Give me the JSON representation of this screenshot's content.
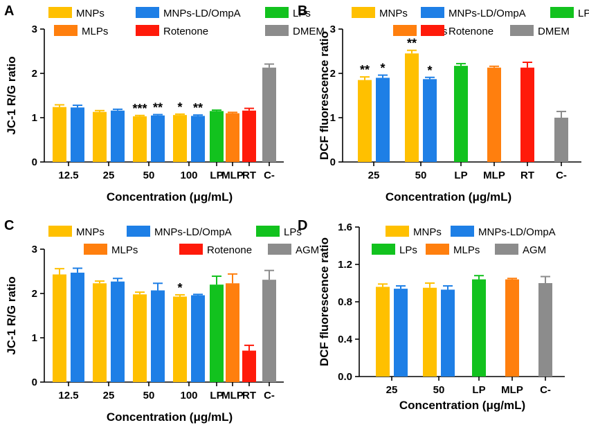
{
  "colors": {
    "MNPs": "#FFC000",
    "MNPs-LD/OmpA": "#1E7FE6",
    "LPs": "#12C21E",
    "MLPs": "#FF7F0E",
    "Rotenone": "#FF1A0A",
    "DMEM": "#8C8C8C",
    "AGM": "#8C8C8C"
  },
  "chart_data": [
    {
      "panel": "A",
      "type": "bar",
      "ylabel": "JC-1 R/G ratio",
      "xlabel": "Concentration (μg/mL)",
      "ylim": [
        0,
        3
      ],
      "yticks": [
        "0",
        "1",
        "2",
        "3"
      ],
      "legend": [
        "MNPs",
        "MNPs-LD/OmpA",
        "LPs",
        "MLPs",
        "Rotenone",
        "DMEM"
      ],
      "groups": [
        {
          "label": "12.5",
          "bars": [
            {
              "series": "MNPs",
              "value": 1.24,
              "err": 0.05,
              "sig": ""
            },
            {
              "series": "MNPs-LD/OmpA",
              "value": 1.23,
              "err": 0.05,
              "sig": ""
            }
          ]
        },
        {
          "label": "25",
          "bars": [
            {
              "series": "MNPs",
              "value": 1.13,
              "err": 0.03,
              "sig": ""
            },
            {
              "series": "MNPs-LD/OmpA",
              "value": 1.16,
              "err": 0.03,
              "sig": ""
            }
          ]
        },
        {
          "label": "50",
          "bars": [
            {
              "series": "MNPs",
              "value": 1.03,
              "err": 0.02,
              "sig": "***"
            },
            {
              "series": "MNPs-LD/OmpA",
              "value": 1.05,
              "err": 0.02,
              "sig": "**"
            }
          ]
        },
        {
          "label": "100",
          "bars": [
            {
              "series": "MNPs",
              "value": 1.06,
              "err": 0.02,
              "sig": "*"
            },
            {
              "series": "MNPs-LD/OmpA",
              "value": 1.04,
              "err": 0.02,
              "sig": "**"
            }
          ]
        },
        {
          "label": "LP",
          "bars": [
            {
              "series": "LPs",
              "value": 1.15,
              "err": 0.02,
              "sig": ""
            }
          ]
        },
        {
          "label": "MLP",
          "bars": [
            {
              "series": "MLPs",
              "value": 1.1,
              "err": 0.02,
              "sig": ""
            }
          ]
        },
        {
          "label": "RT",
          "bars": [
            {
              "series": "Rotenone",
              "value": 1.16,
              "err": 0.05,
              "sig": ""
            }
          ]
        },
        {
          "label": "C-",
          "bars": [
            {
              "series": "DMEM",
              "value": 2.13,
              "err": 0.08,
              "sig": ""
            }
          ]
        }
      ]
    },
    {
      "panel": "B",
      "type": "bar",
      "ylabel": "DCF fluorescence ratio",
      "xlabel": "Concentration (μg/mL)",
      "ylim": [
        0,
        3
      ],
      "yticks": [
        "0",
        "1",
        "2",
        "3"
      ],
      "legend": [
        "MNPs",
        "MNPs-LD/OmpA",
        "LPs",
        "MLPs",
        "Rotenone",
        "DMEM"
      ],
      "groups": [
        {
          "label": "25",
          "bars": [
            {
              "series": "MNPs",
              "value": 1.85,
              "err": 0.07,
              "sig": "**"
            },
            {
              "series": "MNPs-LD/OmpA",
              "value": 1.9,
              "err": 0.06,
              "sig": "*"
            }
          ]
        },
        {
          "label": "50",
          "bars": [
            {
              "series": "MNPs",
              "value": 2.45,
              "err": 0.07,
              "sig": "**"
            },
            {
              "series": "MNPs-LD/OmpA",
              "value": 1.87,
              "err": 0.04,
              "sig": "*"
            }
          ]
        },
        {
          "label": "LP",
          "bars": [
            {
              "series": "LPs",
              "value": 2.17,
              "err": 0.05,
              "sig": ""
            }
          ]
        },
        {
          "label": "MLP",
          "bars": [
            {
              "series": "MLPs",
              "value": 2.13,
              "err": 0.03,
              "sig": ""
            }
          ]
        },
        {
          "label": "RT",
          "bars": [
            {
              "series": "Rotenone",
              "value": 2.13,
              "err": 0.12,
              "sig": ""
            }
          ]
        },
        {
          "label": "C-",
          "bars": [
            {
              "series": "DMEM",
              "value": 1.0,
              "err": 0.14,
              "sig": ""
            }
          ]
        }
      ]
    },
    {
      "panel": "C",
      "type": "bar",
      "ylabel": "JC-1 R/G ratio",
      "xlabel": "Concentration (μg/mL)",
      "ylim": [
        0,
        3
      ],
      "yticks": [
        "0",
        "1",
        "2",
        "3"
      ],
      "legend": [
        "MNPs",
        "MNPs-LD/OmpA",
        "LPs",
        "MLPs",
        "Rotenone",
        "AGM"
      ],
      "groups": [
        {
          "label": "12.5",
          "bars": [
            {
              "series": "MNPs",
              "value": 2.43,
              "err": 0.13,
              "sig": ""
            },
            {
              "series": "MNPs-LD/OmpA",
              "value": 2.47,
              "err": 0.1,
              "sig": ""
            }
          ]
        },
        {
          "label": "25",
          "bars": [
            {
              "series": "MNPs",
              "value": 2.23,
              "err": 0.05,
              "sig": ""
            },
            {
              "series": "MNPs-LD/OmpA",
              "value": 2.27,
              "err": 0.07,
              "sig": ""
            }
          ]
        },
        {
          "label": "50",
          "bars": [
            {
              "series": "MNPs",
              "value": 1.98,
              "err": 0.05,
              "sig": ""
            },
            {
              "series": "MNPs-LD/OmpA",
              "value": 2.07,
              "err": 0.16,
              "sig": ""
            }
          ]
        },
        {
          "label": "100",
          "bars": [
            {
              "series": "MNPs",
              "value": 1.93,
              "err": 0.04,
              "sig": "*"
            },
            {
              "series": "MNPs-LD/OmpA",
              "value": 1.96,
              "err": 0.02,
              "sig": ""
            }
          ]
        },
        {
          "label": "LP",
          "bars": [
            {
              "series": "LPs",
              "value": 2.2,
              "err": 0.19,
              "sig": ""
            }
          ]
        },
        {
          "label": "MLP",
          "bars": [
            {
              "series": "MLPs",
              "value": 2.23,
              "err": 0.21,
              "sig": ""
            }
          ]
        },
        {
          "label": "RT",
          "bars": [
            {
              "series": "Rotenone",
              "value": 0.71,
              "err": 0.12,
              "sig": ""
            }
          ]
        },
        {
          "label": "C-",
          "bars": [
            {
              "series": "AGM",
              "value": 2.31,
              "err": 0.21,
              "sig": ""
            }
          ]
        }
      ]
    },
    {
      "panel": "D",
      "type": "bar",
      "ylabel": "DCF fluorescence ratio",
      "xlabel": "Concentration (μg/mL)",
      "ylim": [
        0,
        1.6
      ],
      "yticks": [
        "0.0",
        "0.4",
        "0.8",
        "1.2",
        "1.6"
      ],
      "legend": [
        "MNPs",
        "MNPs-LD/OmpA",
        "LPs",
        "MLPs",
        "AGM"
      ],
      "groups": [
        {
          "label": "25",
          "bars": [
            {
              "series": "MNPs",
              "value": 0.96,
              "err": 0.03,
              "sig": ""
            },
            {
              "series": "MNPs-LD/OmpA",
              "value": 0.94,
              "err": 0.03,
              "sig": ""
            }
          ]
        },
        {
          "label": "50",
          "bars": [
            {
              "series": "MNPs",
              "value": 0.95,
              "err": 0.05,
              "sig": ""
            },
            {
              "series": "MNPs-LD/OmpA",
              "value": 0.93,
              "err": 0.04,
              "sig": ""
            }
          ]
        },
        {
          "label": "LP",
          "bars": [
            {
              "series": "LPs",
              "value": 1.04,
              "err": 0.04,
              "sig": ""
            }
          ]
        },
        {
          "label": "MLP",
          "bars": [
            {
              "series": "MLPs",
              "value": 1.04,
              "err": 0.01,
              "sig": ""
            }
          ]
        },
        {
          "label": "C-",
          "bars": [
            {
              "series": "AGM",
              "value": 1.0,
              "err": 0.07,
              "sig": ""
            }
          ]
        }
      ]
    }
  ]
}
